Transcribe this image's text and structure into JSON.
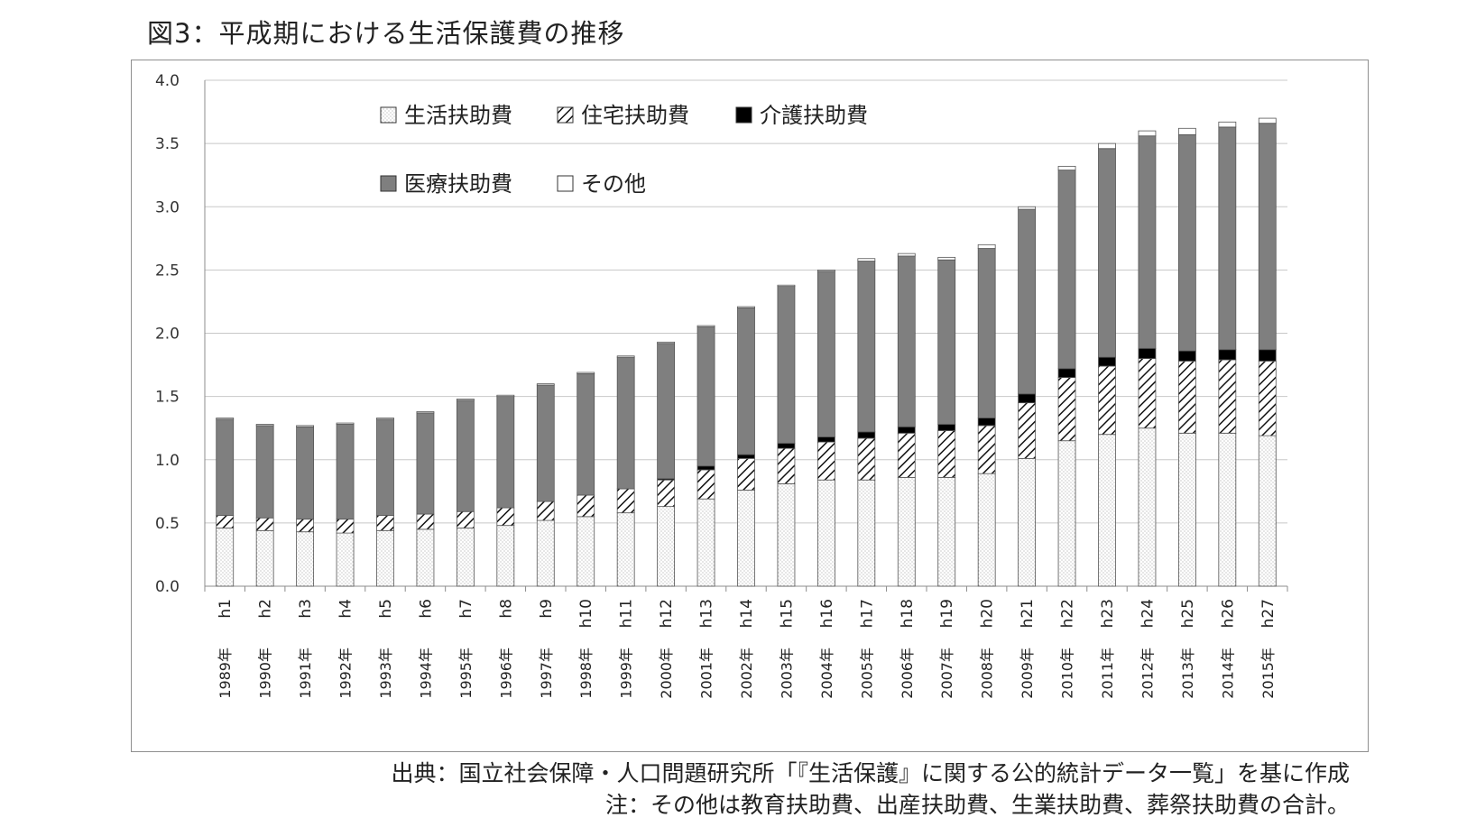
{
  "title": "図3：平成期における生活保護費の推移",
  "source": "出典：国立社会保障・人口問題研究所「『生活保護』に関する公的統計データ一覧」を基に作成",
  "note": "注：その他は教育扶助費、出産扶助費、生業扶助費、葬祭扶助費の合計。",
  "chart_data": {
    "type": "bar",
    "stacked": true,
    "title": "",
    "xlabel": "",
    "ylabel": "",
    "ylim": [
      0,
      4.0
    ],
    "yticks": [
      "0.0",
      "0.5",
      "1.0",
      "1.5",
      "2.0",
      "2.5",
      "3.0",
      "3.5",
      "4.0"
    ],
    "grid": true,
    "legend_position": "top-left (inside plot, two rows)",
    "categories": [
      "h1",
      "h2",
      "h3",
      "h4",
      "h5",
      "h6",
      "h7",
      "h8",
      "h9",
      "h10",
      "h11",
      "h12",
      "h13",
      "h14",
      "h15",
      "h16",
      "h17",
      "h18",
      "h19",
      "h20",
      "h21",
      "h22",
      "h23",
      "h24",
      "h25",
      "h26",
      "h27"
    ],
    "category_years": [
      "1989年",
      "1990年",
      "1991年",
      "1992年",
      "1993年",
      "1994年",
      "1995年",
      "1996年",
      "1997年",
      "1998年",
      "1999年",
      "2000年",
      "2001年",
      "2002年",
      "2003年",
      "2004年",
      "2005年",
      "2006年",
      "2007年",
      "2008年",
      "2009年",
      "2010年",
      "2011年",
      "2012年",
      "2013年",
      "2014年",
      "2015年"
    ],
    "series": [
      {
        "name": "生活扶助費",
        "pattern": "dots",
        "values": [
          0.46,
          0.44,
          0.43,
          0.42,
          0.44,
          0.45,
          0.46,
          0.48,
          0.52,
          0.55,
          0.58,
          0.63,
          0.69,
          0.76,
          0.81,
          0.84,
          0.84,
          0.86,
          0.86,
          0.89,
          1.01,
          1.15,
          1.2,
          1.25,
          1.21,
          1.21,
          1.19
        ]
      },
      {
        "name": "住宅扶助費",
        "pattern": "hatch",
        "values": [
          0.1,
          0.1,
          0.1,
          0.11,
          0.12,
          0.12,
          0.13,
          0.14,
          0.15,
          0.17,
          0.19,
          0.21,
          0.23,
          0.25,
          0.28,
          0.3,
          0.33,
          0.35,
          0.37,
          0.38,
          0.44,
          0.5,
          0.54,
          0.55,
          0.57,
          0.58,
          0.59
        ]
      },
      {
        "name": "介護扶助費",
        "color": "#000000",
        "values": [
          0,
          0,
          0,
          0,
          0,
          0,
          0,
          0,
          0,
          0,
          0,
          0.01,
          0.03,
          0.03,
          0.04,
          0.04,
          0.05,
          0.05,
          0.05,
          0.06,
          0.07,
          0.07,
          0.07,
          0.08,
          0.08,
          0.08,
          0.09
        ]
      },
      {
        "name": "医療扶助費",
        "color": "#7f7f7f",
        "values": [
          0.76,
          0.73,
          0.73,
          0.75,
          0.76,
          0.8,
          0.88,
          0.88,
          0.92,
          0.96,
          1.04,
          1.07,
          1.1,
          1.16,
          1.24,
          1.31,
          1.35,
          1.35,
          1.3,
          1.34,
          1.46,
          1.57,
          1.65,
          1.68,
          1.71,
          1.76,
          1.79
        ]
      },
      {
        "name": "その他",
        "color": "#ffffff",
        "values": [
          0.01,
          0.01,
          0.01,
          0.01,
          0.01,
          0.01,
          0.01,
          0.01,
          0.01,
          0.01,
          0.01,
          0.01,
          0.01,
          0.01,
          0.01,
          0.01,
          0.02,
          0.02,
          0.02,
          0.03,
          0.02,
          0.03,
          0.04,
          0.04,
          0.05,
          0.04,
          0.04
        ]
      }
    ],
    "colors": {
      "axis": "#8c8c8c",
      "grid": "#c8c8c8",
      "outline": "#555555"
    }
  }
}
